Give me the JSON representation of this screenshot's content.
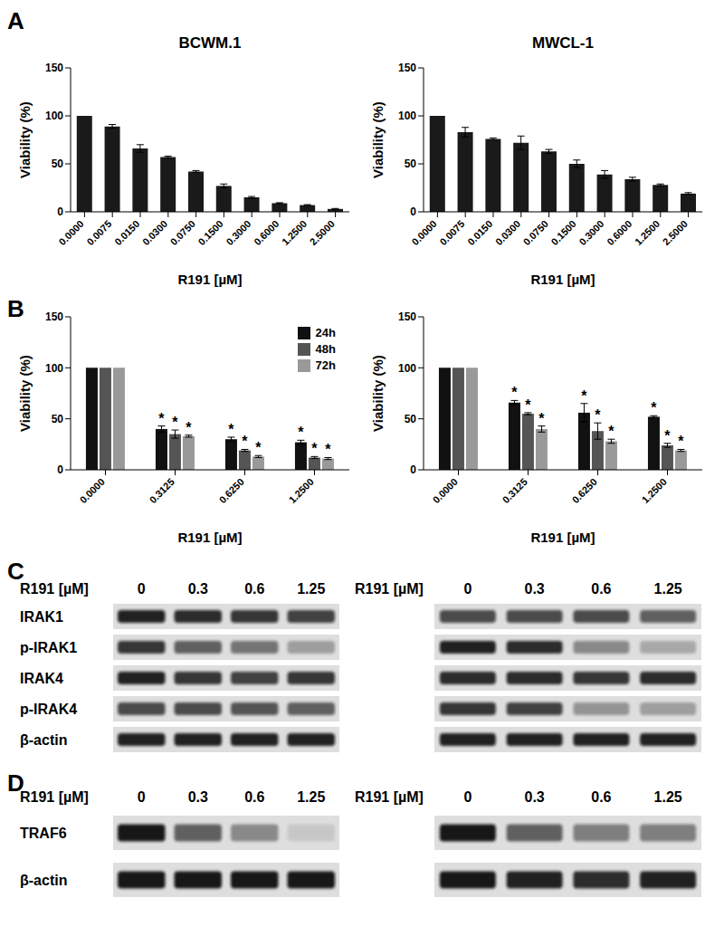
{
  "chart_data": [
    {
      "panel": "A",
      "type": "bar",
      "title": "BCWM.1",
      "x_label": "R191 [µM]",
      "y_label": "Viability (%)",
      "categories": [
        "0.0000",
        "0.0075",
        "0.0150",
        "0.0300",
        "0.0750",
        "0.1500",
        "0.3000",
        "0.6000",
        "1.2500",
        "2.5000"
      ],
      "values": [
        100,
        89,
        66,
        57,
        42,
        27,
        15,
        9,
        7,
        3
      ],
      "errors": [
        0,
        2,
        4,
        1,
        1,
        2,
        1,
        0.5,
        0.5,
        0.5
      ],
      "color": "#1a1a1a",
      "ylim": [
        0,
        150
      ],
      "yticks": [
        0,
        50,
        100,
        150
      ]
    },
    {
      "type": "bar",
      "title": "MWCL-1",
      "x_label": "R191 [µM]",
      "y_label": "Viability (%)",
      "categories": [
        "0.0000",
        "0.0075",
        "0.0150",
        "0.0300",
        "0.0750",
        "0.1500",
        "0.3000",
        "0.6000",
        "1.2500",
        "2.5000"
      ],
      "values": [
        100,
        83,
        76,
        72,
        63,
        50,
        39,
        34,
        28,
        19
      ],
      "errors": [
        0,
        5,
        1,
        7,
        2,
        4,
        4,
        2,
        1,
        1
      ],
      "color": "#1a1a1a",
      "ylim": [
        0,
        150
      ],
      "yticks": [
        0,
        50,
        100,
        150
      ]
    },
    {
      "panel": "B",
      "type": "bar",
      "x_label": "R191 [µM]",
      "y_label": "Viability (%)",
      "categories": [
        "0.0000",
        "0.3125",
        "0.6250",
        "1.2500"
      ],
      "series": [
        {
          "name": "24h",
          "color": "#111111",
          "values": [
            100,
            40,
            30,
            27
          ],
          "errors": [
            0,
            3,
            2,
            2
          ],
          "annotations": [
            null,
            "*",
            "*",
            "*"
          ]
        },
        {
          "name": "48h",
          "color": "#555555",
          "values": [
            100,
            35,
            19,
            12
          ],
          "errors": [
            0,
            4,
            1,
            1
          ],
          "annotations": [
            null,
            "*",
            "*",
            "*"
          ]
        },
        {
          "name": "72h",
          "color": "#999999",
          "values": [
            100,
            33,
            13,
            11
          ],
          "errors": [
            0,
            1,
            1,
            1
          ],
          "annotations": [
            null,
            "*",
            "*",
            "*"
          ]
        }
      ],
      "legend": "top-right",
      "ylim": [
        0,
        150
      ],
      "yticks": [
        0,
        50,
        100,
        150
      ]
    },
    {
      "type": "bar",
      "x_label": "R191 [µM]",
      "y_label": "Viability (%)",
      "categories": [
        "0.0000",
        "0.3125",
        "0.6250",
        "1.2500"
      ],
      "series": [
        {
          "color": "#111111",
          "values": [
            100,
            66,
            56,
            52
          ],
          "errors": [
            0,
            2,
            9,
            1
          ],
          "annotations": [
            null,
            "*",
            "*",
            "*"
          ]
        },
        {
          "color": "#555555",
          "values": [
            100,
            55,
            38,
            24
          ],
          "errors": [
            0,
            1,
            8,
            2
          ],
          "annotations": [
            null,
            "*",
            "*",
            "*"
          ]
        },
        {
          "color": "#999999",
          "values": [
            100,
            40,
            28,
            19
          ],
          "errors": [
            0,
            3,
            2,
            1
          ],
          "annotations": [
            null,
            "*",
            "*",
            "*"
          ]
        }
      ],
      "ylim": [
        0,
        150
      ],
      "yticks": [
        0,
        50,
        100,
        150
      ]
    }
  ],
  "blot_panels": [
    {
      "panel": "C",
      "blots": [
        {
          "header": "R191 [µM]",
          "lanes": [
            "0",
            "0.3",
            "0.6",
            "1.25"
          ],
          "rows": [
            {
              "label": "IRAK1",
              "band_intensity": [
                0.9,
                0.85,
                0.8,
                0.75
              ]
            },
            {
              "label": "p-IRAK1",
              "band_intensity": [
                0.8,
                0.6,
                0.5,
                0.3
              ]
            },
            {
              "label": "IRAK4",
              "band_intensity": [
                0.9,
                0.8,
                0.75,
                0.8
              ]
            },
            {
              "label": "p-IRAK4",
              "band_intensity": [
                0.7,
                0.7,
                0.65,
                0.6
              ]
            },
            {
              "label": "β-actin",
              "band_intensity": [
                0.9,
                0.9,
                0.9,
                0.9
              ]
            }
          ]
        },
        {
          "header": "R191 [µM]",
          "lanes": [
            "0",
            "0.3",
            "0.6",
            "1.25"
          ],
          "rows": [
            {
              "band_intensity": [
                0.7,
                0.7,
                0.7,
                0.6
              ]
            },
            {
              "band_intensity": [
                0.9,
                0.85,
                0.4,
                0.25
              ]
            },
            {
              "band_intensity": [
                0.85,
                0.85,
                0.8,
                0.85
              ]
            },
            {
              "band_intensity": [
                0.8,
                0.75,
                0.35,
                0.3
              ]
            },
            {
              "band_intensity": [
                0.9,
                0.9,
                0.9,
                0.9
              ]
            }
          ]
        }
      ]
    },
    {
      "panel": "D",
      "blots": [
        {
          "header": "R191 [µM]",
          "lanes": [
            "0",
            "0.3",
            "0.6",
            "1.25"
          ],
          "rows": [
            {
              "label": "TRAF6",
              "band_intensity": [
                0.95,
                0.6,
                0.4,
                0.1
              ]
            },
            {
              "label": "β-actin",
              "band_intensity": [
                0.95,
                0.95,
                0.95,
                0.95
              ]
            }
          ]
        },
        {
          "header": "R191 [µM]",
          "lanes": [
            "0",
            "0.3",
            "0.6",
            "1.25"
          ],
          "rows": [
            {
              "band_intensity": [
                0.95,
                0.6,
                0.45,
                0.45
              ]
            },
            {
              "band_intensity": [
                0.95,
                0.9,
                0.85,
                0.9
              ]
            }
          ]
        }
      ]
    }
  ]
}
